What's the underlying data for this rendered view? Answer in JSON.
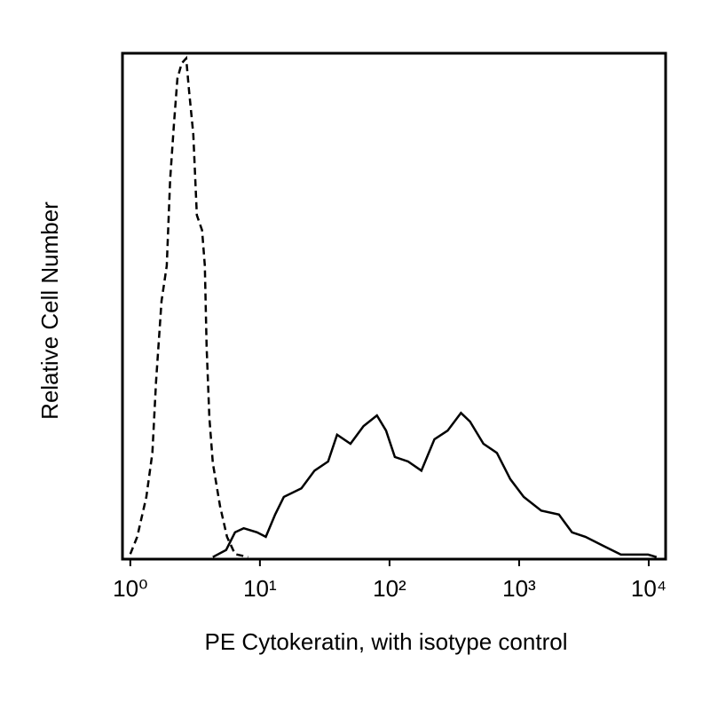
{
  "chart_data": {
    "type": "line",
    "x_label": "PE Cytokeratin, with isotype control",
    "y_label": "Relative Cell Number",
    "xscale": "log",
    "xlim": [
      0.87,
      13500
    ],
    "ylim": [
      0,
      100
    ],
    "xticks": [
      {
        "value": 1,
        "label": "10⁰"
      },
      {
        "value": 10,
        "label": "10¹"
      },
      {
        "value": 100,
        "label": "10²"
      },
      {
        "value": 1000,
        "label": "10³"
      },
      {
        "value": 10000,
        "label": "10⁴"
      }
    ],
    "series": [
      {
        "color": "#000000",
        "style": "dashed",
        "x": [
          1.0,
          1.13,
          1.33,
          1.48,
          1.58,
          1.74,
          1.91,
          2.03,
          2.17,
          2.31,
          2.49,
          2.7,
          2.83,
          3.06,
          3.26,
          3.58,
          3.76,
          3.88,
          4.07,
          4.33,
          4.92,
          5.57,
          6.42,
          8.1
        ],
        "values": [
          1,
          4.4,
          12.3,
          21,
          35,
          51,
          58,
          75,
          86,
          95,
          98,
          99,
          93,
          84,
          68,
          65,
          58,
          42,
          28,
          19,
          10.5,
          4.4,
          1,
          0.4
        ]
      },
      {
        "color": "#000000",
        "style": "solid",
        "x": [
          4.33,
          5.49,
          6.42,
          7.5,
          9.5,
          11.1,
          13.1,
          15.3,
          20.9,
          26.4,
          33.6,
          39.4,
          50,
          63,
          80,
          94,
          110,
          139,
          176,
          222,
          281,
          356,
          418,
          530,
          674,
          855,
          1085,
          1480,
          2030,
          2560,
          3250,
          4490,
          6100,
          9900,
          11500
        ],
        "values": [
          0.4,
          1.8,
          5.3,
          6.1,
          5.3,
          4.4,
          8.8,
          12.3,
          14,
          17.5,
          19.3,
          24.6,
          22.8,
          26.3,
          28.4,
          25.4,
          20.2,
          19.3,
          17.5,
          23.7,
          25.4,
          28.9,
          27.2,
          22.8,
          21,
          15.8,
          12.3,
          9.6,
          8.8,
          5.3,
          4.4,
          2.6,
          0.9,
          0.9,
          0.4
        ]
      }
    ]
  }
}
